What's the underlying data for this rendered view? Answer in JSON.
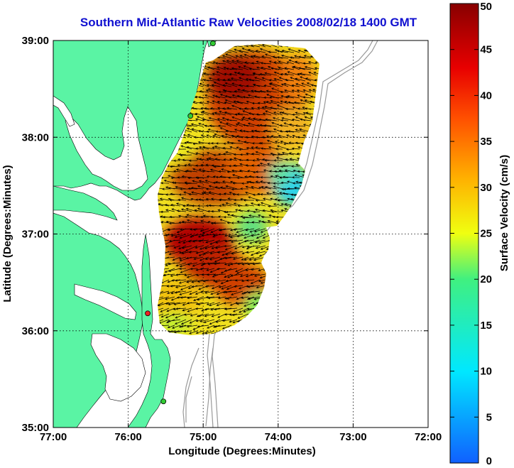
{
  "title": "Southern Mid-Atlantic Raw Velocities 2008/02/18 1400 GMT",
  "x_axis": {
    "label": "Longitude (Degrees:Minutes)",
    "ticks": [
      "77:00",
      "76:00",
      "75:00",
      "74:00",
      "73:00",
      "72:00"
    ]
  },
  "y_axis": {
    "label": "Latitude (Degrees:Minutes)",
    "ticks": [
      "39:00",
      "38:00",
      "37:00",
      "36:00",
      "35:00"
    ]
  },
  "colorbar": {
    "label": "Surface Velocity (cm/s)",
    "ticks": [
      "50",
      "45",
      "40",
      "35",
      "30",
      "25",
      "20",
      "15",
      "10",
      "5",
      "0"
    ],
    "min": 0,
    "max": 50
  },
  "colors": {
    "land": "#5af4a4",
    "water": "#ffffff",
    "title": "#1010d0",
    "site_green": "#33cc33",
    "site_red": "#ee2222"
  },
  "map_extent": {
    "lon_min": -77,
    "lon_max": -72,
    "lat_min": 35,
    "lat_max": 39
  },
  "sites": [
    {
      "name": "",
      "lon": -74.87,
      "lat": 38.97,
      "color": "green"
    },
    {
      "name": "",
      "lon": -75.17,
      "lat": 38.22,
      "color": "green"
    },
    {
      "name": "",
      "lon": -75.74,
      "lat": 36.18,
      "color": "red"
    },
    {
      "name": "",
      "lon": -75.53,
      "lat": 35.27,
      "color": "green"
    }
  ]
}
